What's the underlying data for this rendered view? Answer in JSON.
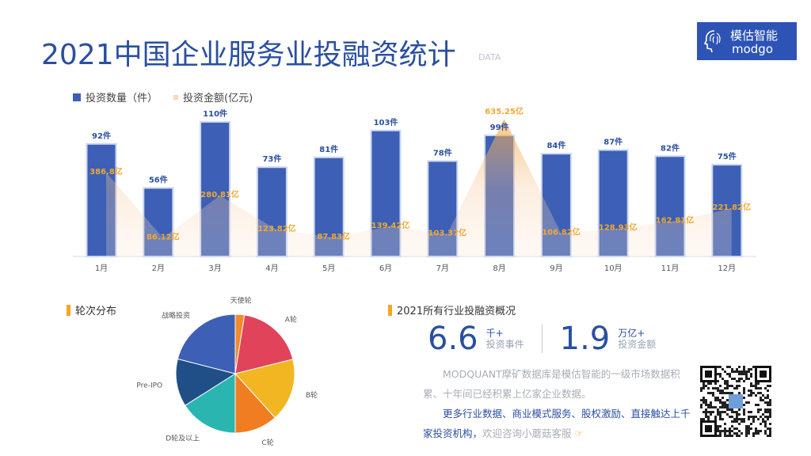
{
  "header": {
    "title": "2021中国企业服务业投融资统计",
    "subtitle": "DATA"
  },
  "logo": {
    "cn": "模估智能",
    "en": "modgo"
  },
  "colors": {
    "bar": "#3d5fb5",
    "area": "#f4a53b",
    "accent": "#f5a623",
    "title": "#2a4fa0"
  },
  "chart_data": [
    {
      "type": "bar",
      "categories": [
        "1月",
        "2月",
        "3月",
        "4月",
        "5月",
        "6月",
        "7月",
        "8月",
        "9月",
        "10月",
        "11月",
        "12月"
      ],
      "series": [
        {
          "name": "投资数量（件）",
          "type": "bar",
          "values": [
            92,
            56,
            110,
            73,
            81,
            103,
            78,
            99,
            84,
            87,
            82,
            75
          ],
          "labels": [
            "92件",
            "56件",
            "110件",
            "73件",
            "81件",
            "103件",
            "78件",
            "99件",
            "84件",
            "87件",
            "82件",
            "75件"
          ]
        },
        {
          "name": "投资金额(亿元)",
          "type": "area",
          "values": [
            386.8,
            86.12,
            280.81,
            123.82,
            87.83,
            139.42,
            103.37,
            635.25,
            106.82,
            128.93,
            162.81,
            221.82
          ],
          "labels": [
            "386.8亿",
            "86.12亿",
            "280.81亿",
            "123.82亿",
            "87.83亿",
            "139.42亿",
            "103.37亿",
            "635.25亿",
            "106.82亿",
            "128.93亿",
            "162.81亿",
            "221.82亿"
          ]
        }
      ],
      "legend": "top-left",
      "grid": false
    },
    {
      "type": "pie",
      "title": "轮次分布",
      "categories": [
        "天使轮",
        "A轮",
        "B轮",
        "C轮",
        "D轮及以上",
        "Pre-IPO",
        "战略投资"
      ],
      "values": [
        2.5,
        18.6,
        17.2,
        11.7,
        16.0,
        13.0,
        21.0
      ],
      "colors": [
        "#f08a2c",
        "#e0435a",
        "#f3b623",
        "#f07d22",
        "#2bb5b0",
        "#1f4f86",
        "#3d5fb5"
      ]
    }
  ],
  "summary": {
    "title": "2021所有行业投融资概况",
    "events_value": "6.6",
    "events_unit": "千+",
    "events_label": "投资事件",
    "amount_value": "1.9",
    "amount_unit": "万亿+",
    "amount_label": "投资金额",
    "para1": "MODQUANT摩矿数据库是模估智能的一级市场数据积累、十年间已经积累上亿家企业数据。",
    "para2_highlight": "更多行业数据、商业模式服务、股权激励、直接触达上千家投资机构，",
    "para2_rest": "欢迎咨询小蘑菇客服",
    "pointer_icon": "hand-pointer-icon"
  }
}
